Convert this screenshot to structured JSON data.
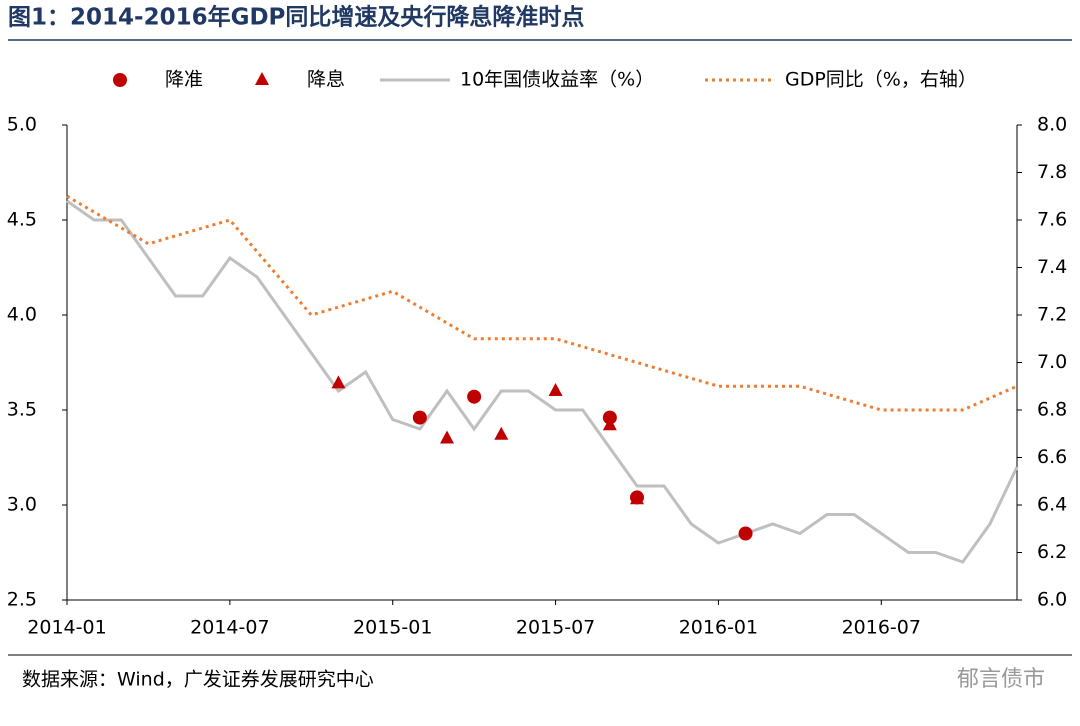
{
  "chart_data": {
    "type": "line",
    "title": "图1：2014-2016年GDP同比增速及央行降息降准时点",
    "source": "数据来源：Wind，广发证券发展研究中心",
    "watermark": "郁言债市",
    "xlim": [
      "2014-01",
      "2016-12"
    ],
    "xticks": [
      "2014-01",
      "2014-07",
      "2015-01",
      "2015-07",
      "2016-01",
      "2016-07"
    ],
    "ylim": [
      2.5,
      5.0
    ],
    "yticks": [
      2.5,
      {
        "value": 3.0,
        "label": "3.0"
      },
      3.5,
      {
        "value": 4.0,
        "label": "4.0"
      },
      4.5,
      {
        "value": 5.0,
        "label": "5.0"
      }
    ],
    "y2lim": [
      6.0,
      8.0
    ],
    "y2ticks": [
      {
        "value": 6.0,
        "label": "6.0"
      },
      6.2,
      6.4,
      6.6,
      6.8,
      {
        "value": 7.0,
        "label": "7.0"
      },
      7.2,
      7.4,
      7.6,
      7.8,
      {
        "value": 8.0,
        "label": "8.0"
      }
    ],
    "series": [
      {
        "name": "降准",
        "type": "scatter",
        "marker": "circle",
        "color": "#c00000",
        "x": [
          "2015-02",
          "2015-04",
          "2015-09",
          "2015-10",
          "2016-02"
        ],
        "values": [
          3.46,
          3.57,
          3.46,
          3.04,
          2.85
        ]
      },
      {
        "name": "降息",
        "type": "scatter",
        "marker": "triangle",
        "color": "#c00000",
        "x": [
          "2014-11",
          "2015-03",
          "2015-05",
          "2015-07",
          "2015-09",
          "2015-10"
        ],
        "values": [
          3.64,
          3.35,
          3.37,
          3.6,
          3.42,
          3.03
        ]
      },
      {
        "name": "10年国债收益率（%）",
        "type": "line",
        "color": "#bfbfbf",
        "line_style": "solid",
        "x": [
          "2014-01",
          "2014-02",
          "2014-03",
          "2014-04",
          "2014-05",
          "2014-06",
          "2014-07",
          "2014-08",
          "2014-09",
          "2014-10",
          "2014-11",
          "2014-12",
          "2015-01",
          "2015-02",
          "2015-03",
          "2015-04",
          "2015-05",
          "2015-06",
          "2015-07",
          "2015-08",
          "2015-09",
          "2015-10",
          "2015-11",
          "2015-12",
          "2016-01",
          "2016-02",
          "2016-03",
          "2016-04",
          "2016-05",
          "2016-06",
          "2016-07",
          "2016-08",
          "2016-09",
          "2016-10",
          "2016-11",
          "2016-12"
        ],
        "values": [
          4.6,
          4.5,
          4.5,
          4.3,
          4.1,
          4.1,
          4.3,
          4.2,
          4.0,
          3.8,
          3.6,
          3.7,
          3.45,
          3.4,
          3.6,
          3.4,
          3.6,
          3.6,
          3.5,
          3.5,
          3.3,
          3.1,
          3.1,
          2.9,
          2.8,
          2.85,
          2.9,
          2.85,
          2.95,
          2.95,
          2.85,
          2.75,
          2.75,
          2.7,
          2.9,
          3.2
        ]
      },
      {
        "name": "GDP同比（%，右轴）",
        "type": "line",
        "axis": "y2",
        "color": "#ed7d31",
        "line_style": "dotted",
        "x": [
          "2014-01",
          "2014-04",
          "2014-07",
          "2014-10",
          "2015-01",
          "2015-04",
          "2015-07",
          "2015-10",
          "2016-01",
          "2016-04",
          "2016-07",
          "2016-10",
          "2016-12"
        ],
        "values": [
          7.7,
          7.5,
          7.6,
          7.2,
          7.3,
          7.1,
          7.1,
          7.0,
          6.9,
          6.9,
          6.8,
          6.8,
          6.9
        ]
      }
    ]
  }
}
